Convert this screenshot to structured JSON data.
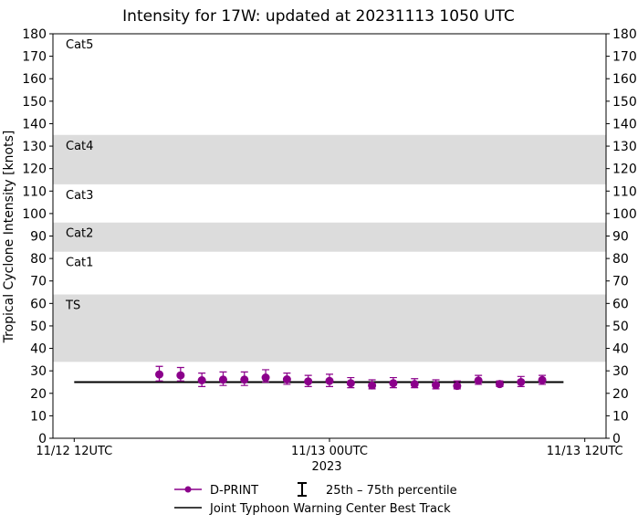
{
  "chart_data": {
    "type": "scatter",
    "title": "Intensity for 17W: updated at 20231113 1050 UTC",
    "ylabel": "Tropical Cyclone Intensity [knots]",
    "xlabel": "2023",
    "ylim": [
      0,
      180
    ],
    "yticks": [
      0,
      10,
      20,
      30,
      40,
      50,
      60,
      70,
      80,
      90,
      100,
      110,
      120,
      130,
      140,
      150,
      160,
      170,
      180
    ],
    "xlim_hours": [
      -1,
      25
    ],
    "xticks": [
      {
        "hour": 0,
        "label": "11/12 12UTC"
      },
      {
        "hour": 12,
        "label": "11/13 00UTC"
      },
      {
        "hour": 24,
        "label": "11/13 12UTC"
      }
    ],
    "bands": [
      {
        "label": "TS",
        "lo": 34,
        "hi": 64,
        "shaded": true
      },
      {
        "label": "Cat1",
        "lo": 64,
        "hi": 83,
        "shaded": false
      },
      {
        "label": "Cat2",
        "lo": 83,
        "hi": 96,
        "shaded": true
      },
      {
        "label": "Cat3",
        "lo": 96,
        "hi": 113,
        "shaded": false
      },
      {
        "label": "Cat4",
        "lo": 113,
        "hi": 135,
        "shaded": true
      },
      {
        "label": "Cat5",
        "lo": 135,
        "hi": 180,
        "shaded": false
      }
    ],
    "series": [
      {
        "name": "D-PRINT",
        "color": "#8b008b",
        "hours": [
          4,
          5,
          6,
          7,
          8,
          9,
          10,
          11,
          12,
          13,
          14,
          15,
          16,
          17,
          18,
          19,
          20,
          21,
          22
        ],
        "values": [
          28.4,
          28.0,
          25.8,
          26.1,
          26.1,
          27.0,
          26.2,
          25.3,
          25.5,
          24.5,
          23.5,
          24.5,
          24.1,
          23.7,
          23.3,
          25.7,
          24.1,
          25.0,
          25.9
        ],
        "p25": [
          25.5,
          25.5,
          23.0,
          23.5,
          23.5,
          25.0,
          24.0,
          23.0,
          23.0,
          22.5,
          22.0,
          22.5,
          22.5,
          22.0,
          22.0,
          24.0,
          23.0,
          23.0,
          24.0
        ],
        "p75": [
          32.0,
          31.5,
          29.0,
          29.5,
          29.5,
          30.5,
          29.0,
          28.0,
          28.5,
          27.0,
          26.0,
          27.0,
          26.5,
          26.0,
          25.5,
          28.0,
          25.5,
          27.5,
          28.0
        ]
      },
      {
        "name": "Joint Typhoon Warning Center Best Track",
        "color": "#000000",
        "hours": [
          0,
          23
        ],
        "values": [
          25,
          25
        ]
      }
    ],
    "legend": {
      "placement": "bottom",
      "percentile_label": "25th – 75th percentile"
    }
  }
}
